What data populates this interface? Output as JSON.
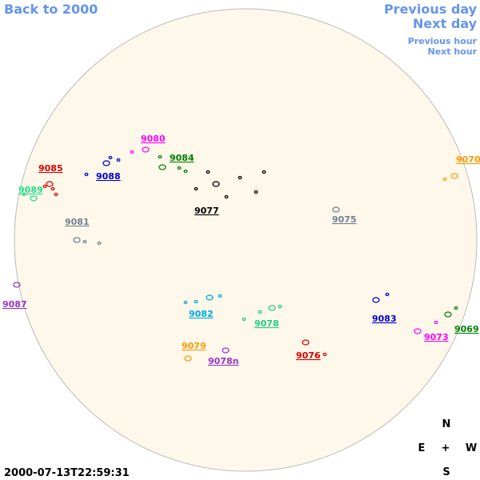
{
  "navigation": {
    "back": "Back to 2000",
    "previous_day": "Previous day",
    "next_day": "Next day",
    "previous_hour": "Previous hour",
    "next_hour": "Next hour"
  },
  "regions": [
    "9080",
    "9084",
    "9085",
    "9088",
    "9089",
    "9077",
    "9075",
    "9081",
    "9070",
    "9087",
    "9082",
    "9078",
    "9083",
    "9069",
    "9073",
    "9079",
    "9076",
    "9078n"
  ],
  "compass": {
    "north": "N",
    "east": "E",
    "center": "+",
    "west": "W",
    "south": "S"
  },
  "timestamp": "2000-07-13T22:59:31"
}
